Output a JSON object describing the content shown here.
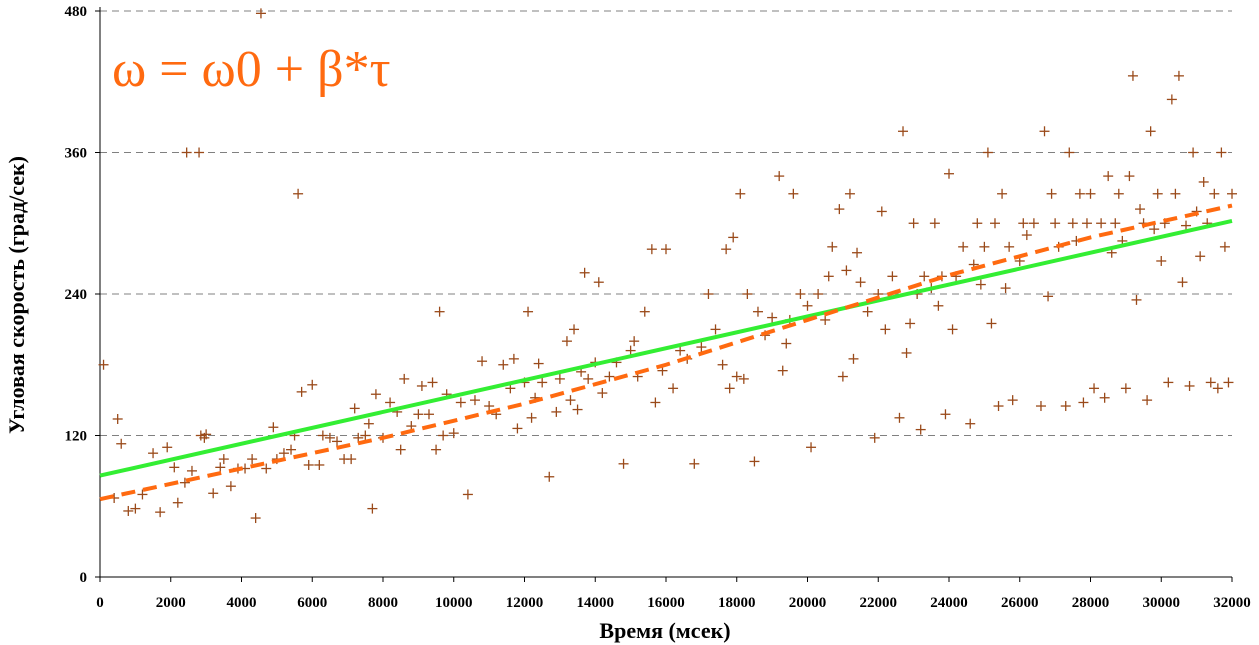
{
  "chart_data": {
    "type": "scatter",
    "title": "",
    "annotation": "ω = ω0 + β*τ",
    "xlabel": "Время (мсек)",
    "ylabel": "Угловая скорость (град/сек)",
    "xlim": [
      0,
      32000
    ],
    "ylim": [
      0,
      480
    ],
    "xticks": [
      0,
      2000,
      4000,
      6000,
      8000,
      10000,
      12000,
      14000,
      16000,
      18000,
      20000,
      22000,
      24000,
      26000,
      28000,
      30000,
      32000
    ],
    "yticks": [
      0,
      120,
      240,
      360,
      480
    ],
    "grid": "horizontal dashed",
    "legend": "none",
    "colors": {
      "points": "#9a4a1a",
      "fit_solid": "#33ee33",
      "fit_dashed": "#ff6a10",
      "annotation": "#ff6a10",
      "grid": "#808080"
    },
    "series": [
      {
        "type": "scatter",
        "marker": "plus",
        "points": [
          [
            100,
            180
          ],
          [
            400,
            67
          ],
          [
            500,
            134
          ],
          [
            600,
            113
          ],
          [
            800,
            56
          ],
          [
            1000,
            58
          ],
          [
            1200,
            70
          ],
          [
            1500,
            105
          ],
          [
            1700,
            55
          ],
          [
            1900,
            110
          ],
          [
            2100,
            93
          ],
          [
            2200,
            63
          ],
          [
            2400,
            80
          ],
          [
            2450,
            360
          ],
          [
            2600,
            90
          ],
          [
            2800,
            360
          ],
          [
            2850,
            120
          ],
          [
            2950,
            118
          ],
          [
            3000,
            121
          ],
          [
            3200,
            71
          ],
          [
            3400,
            93
          ],
          [
            3500,
            100
          ],
          [
            3700,
            77
          ],
          [
            3900,
            92
          ],
          [
            4100,
            92
          ],
          [
            4300,
            100
          ],
          [
            4400,
            50
          ],
          [
            4550,
            478
          ],
          [
            4700,
            92
          ],
          [
            4900,
            127
          ],
          [
            5000,
            100
          ],
          [
            5200,
            105
          ],
          [
            5400,
            108
          ],
          [
            5500,
            120
          ],
          [
            5600,
            325
          ],
          [
            5700,
            157
          ],
          [
            5900,
            95
          ],
          [
            6000,
            163
          ],
          [
            6200,
            95
          ],
          [
            6300,
            120
          ],
          [
            6500,
            118
          ],
          [
            6700,
            115
          ],
          [
            6900,
            100
          ],
          [
            7100,
            100
          ],
          [
            7200,
            143
          ],
          [
            7300,
            118
          ],
          [
            7500,
            120
          ],
          [
            7600,
            130
          ],
          [
            7700,
            58
          ],
          [
            7800,
            155
          ],
          [
            8000,
            118
          ],
          [
            8200,
            148
          ],
          [
            8400,
            140
          ],
          [
            8500,
            108
          ],
          [
            8600,
            168
          ],
          [
            8800,
            128
          ],
          [
            9000,
            138
          ],
          [
            9100,
            162
          ],
          [
            9300,
            138
          ],
          [
            9400,
            165
          ],
          [
            9500,
            108
          ],
          [
            9600,
            225
          ],
          [
            9700,
            120
          ],
          [
            9800,
            155
          ],
          [
            10000,
            122
          ],
          [
            10200,
            148
          ],
          [
            10400,
            70
          ],
          [
            10600,
            150
          ],
          [
            10800,
            183
          ],
          [
            11000,
            145
          ],
          [
            11200,
            138
          ],
          [
            11400,
            180
          ],
          [
            11600,
            160
          ],
          [
            11700,
            185
          ],
          [
            11800,
            126
          ],
          [
            12000,
            165
          ],
          [
            12100,
            225
          ],
          [
            12200,
            135
          ],
          [
            12300,
            152
          ],
          [
            12400,
            181
          ],
          [
            12500,
            165
          ],
          [
            12700,
            85
          ],
          [
            12900,
            140
          ],
          [
            13000,
            168
          ],
          [
            13200,
            200
          ],
          [
            13300,
            150
          ],
          [
            13400,
            210
          ],
          [
            13500,
            142
          ],
          [
            13600,
            174
          ],
          [
            13700,
            258
          ],
          [
            13800,
            168
          ],
          [
            14000,
            182
          ],
          [
            14100,
            250
          ],
          [
            14200,
            156
          ],
          [
            14400,
            170
          ],
          [
            14600,
            182
          ],
          [
            14800,
            96
          ],
          [
            15000,
            192
          ],
          [
            15100,
            200
          ],
          [
            15200,
            170
          ],
          [
            15400,
            225
          ],
          [
            15600,
            278
          ],
          [
            15700,
            148
          ],
          [
            15900,
            175
          ],
          [
            16000,
            278
          ],
          [
            16200,
            160
          ],
          [
            16400,
            192
          ],
          [
            16600,
            185
          ],
          [
            16800,
            96
          ],
          [
            17000,
            195
          ],
          [
            17200,
            240
          ],
          [
            17400,
            210
          ],
          [
            17600,
            180
          ],
          [
            17700,
            278
          ],
          [
            17800,
            160
          ],
          [
            17900,
            288
          ],
          [
            18000,
            170
          ],
          [
            18100,
            325
          ],
          [
            18200,
            168
          ],
          [
            18300,
            240
          ],
          [
            18500,
            98
          ],
          [
            18600,
            225
          ],
          [
            18800,
            205
          ],
          [
            19000,
            220
          ],
          [
            19200,
            340
          ],
          [
            19300,
            175
          ],
          [
            19400,
            198
          ],
          [
            19500,
            218
          ],
          [
            19600,
            325
          ],
          [
            19800,
            240
          ],
          [
            20000,
            230
          ],
          [
            20100,
            110
          ],
          [
            20300,
            240
          ],
          [
            20500,
            218
          ],
          [
            20600,
            255
          ],
          [
            20700,
            280
          ],
          [
            20900,
            312
          ],
          [
            21000,
            170
          ],
          [
            21100,
            260
          ],
          [
            21200,
            325
          ],
          [
            21300,
            185
          ],
          [
            21400,
            275
          ],
          [
            21500,
            250
          ],
          [
            21700,
            225
          ],
          [
            21900,
            118
          ],
          [
            22000,
            240
          ],
          [
            22100,
            310
          ],
          [
            22200,
            210
          ],
          [
            22400,
            255
          ],
          [
            22600,
            135
          ],
          [
            22700,
            378
          ],
          [
            22800,
            190
          ],
          [
            22900,
            215
          ],
          [
            23000,
            300
          ],
          [
            23100,
            240
          ],
          [
            23200,
            125
          ],
          [
            23300,
            255
          ],
          [
            23500,
            245
          ],
          [
            23600,
            300
          ],
          [
            23700,
            230
          ],
          [
            23800,
            255
          ],
          [
            23900,
            138
          ],
          [
            24000,
            342
          ],
          [
            24100,
            210
          ],
          [
            24200,
            255
          ],
          [
            24400,
            280
          ],
          [
            24600,
            130
          ],
          [
            24700,
            265
          ],
          [
            24800,
            300
          ],
          [
            24900,
            248
          ],
          [
            25000,
            280
          ],
          [
            25100,
            360
          ],
          [
            25200,
            215
          ],
          [
            25300,
            300
          ],
          [
            25400,
            145
          ],
          [
            25500,
            325
          ],
          [
            25600,
            245
          ],
          [
            25700,
            280
          ],
          [
            25800,
            150
          ],
          [
            26000,
            268
          ],
          [
            26100,
            300
          ],
          [
            26200,
            290
          ],
          [
            26400,
            300
          ],
          [
            26600,
            145
          ],
          [
            26700,
            378
          ],
          [
            26800,
            238
          ],
          [
            26900,
            325
          ],
          [
            27000,
            300
          ],
          [
            27100,
            280
          ],
          [
            27300,
            145
          ],
          [
            27400,
            360
          ],
          [
            27500,
            300
          ],
          [
            27600,
            285
          ],
          [
            27700,
            325
          ],
          [
            27800,
            148
          ],
          [
            27900,
            300
          ],
          [
            28000,
            325
          ],
          [
            28100,
            160
          ],
          [
            28300,
            300
          ],
          [
            28400,
            152
          ],
          [
            28500,
            340
          ],
          [
            28600,
            275
          ],
          [
            28700,
            300
          ],
          [
            28800,
            325
          ],
          [
            28900,
            285
          ],
          [
            29000,
            160
          ],
          [
            29100,
            340
          ],
          [
            29200,
            425
          ],
          [
            29300,
            235
          ],
          [
            29400,
            312
          ],
          [
            29500,
            300
          ],
          [
            29600,
            150
          ],
          [
            29700,
            378
          ],
          [
            29800,
            295
          ],
          [
            29900,
            325
          ],
          [
            30000,
            268
          ],
          [
            30100,
            300
          ],
          [
            30200,
            165
          ],
          [
            30300,
            405
          ],
          [
            30400,
            325
          ],
          [
            30500,
            425
          ],
          [
            30600,
            250
          ],
          [
            30700,
            298
          ],
          [
            30800,
            162
          ],
          [
            30900,
            360
          ],
          [
            31000,
            310
          ],
          [
            31100,
            272
          ],
          [
            31200,
            335
          ],
          [
            31300,
            300
          ],
          [
            31400,
            165
          ],
          [
            31500,
            325
          ],
          [
            31600,
            160
          ],
          [
            31700,
            360
          ],
          [
            31800,
            280
          ],
          [
            31900,
            165
          ],
          [
            32000,
            325
          ]
        ]
      },
      {
        "type": "line",
        "style": "solid",
        "points": [
          [
            0,
            86
          ],
          [
            32000,
            302
          ]
        ]
      },
      {
        "type": "line",
        "style": "dashed",
        "points": [
          [
            0,
            66
          ],
          [
            4000,
            92
          ],
          [
            8000,
            118
          ],
          [
            12000,
            147
          ],
          [
            16000,
            180
          ],
          [
            20000,
            218
          ],
          [
            24000,
            256
          ],
          [
            28000,
            288
          ],
          [
            32000,
            315
          ]
        ]
      }
    ]
  }
}
